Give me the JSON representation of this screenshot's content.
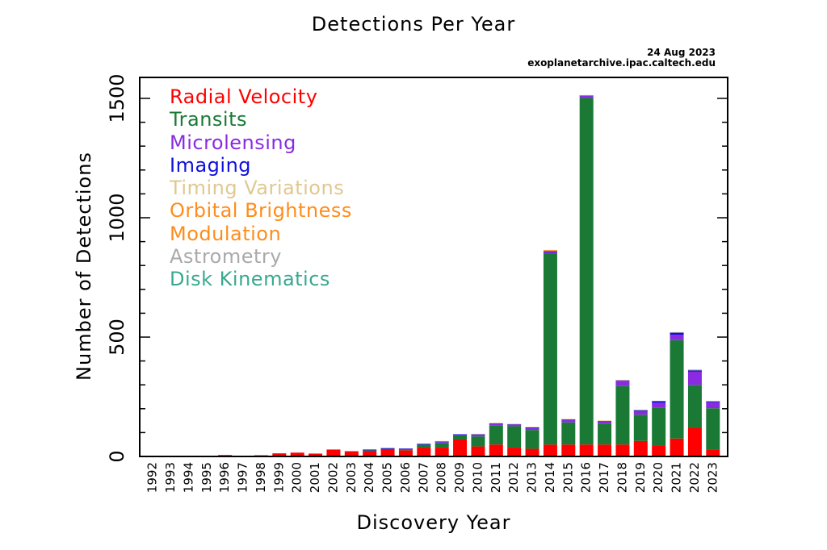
{
  "chart_data": {
    "type": "bar",
    "stacked": true,
    "title": "Detections Per Year",
    "date_stamp": "24 Aug 2023",
    "source": "exoplanetarchive.ipac.caltech.edu",
    "xlabel": "Discovery Year",
    "ylabel": "Number of Detections",
    "ylim": [
      0,
      1500
    ],
    "yticks": [
      0,
      500,
      1000,
      1500
    ],
    "grid": false,
    "legend_position": "top-left",
    "categories": [
      "1992",
      "1993",
      "1994",
      "1995",
      "1996",
      "1997",
      "1998",
      "1999",
      "2000",
      "2001",
      "2002",
      "2003",
      "2004",
      "2005",
      "2006",
      "2007",
      "2008",
      "2009",
      "2010",
      "2011",
      "2012",
      "2013",
      "2014",
      "2015",
      "2016",
      "2017",
      "2018",
      "2019",
      "2020",
      "2021",
      "2022",
      "2023"
    ],
    "series": [
      {
        "name": "Radial Velocity",
        "color": "#ff0000",
        "values": [
          0,
          0,
          0,
          1,
          6,
          1,
          5,
          13,
          16,
          12,
          29,
          22,
          22,
          31,
          26,
          37,
          37,
          71,
          42,
          50,
          37,
          32,
          50,
          50,
          50,
          50,
          50,
          65,
          47,
          75,
          120,
          30
        ]
      },
      {
        "name": "Transits",
        "color": "#1a7a35",
        "values": [
          0,
          0,
          0,
          0,
          0,
          0,
          0,
          0,
          0,
          0,
          0,
          0,
          4,
          2,
          3,
          13,
          19,
          18,
          42,
          79,
          90,
          79,
          798,
          93,
          1452,
          88,
          245,
          110,
          158,
          412,
          180,
          172
        ]
      },
      {
        "name": "Microlensing",
        "color": "#8a2be2",
        "values": [
          0,
          0,
          0,
          0,
          0,
          0,
          0,
          0,
          0,
          0,
          0,
          0,
          2,
          1,
          2,
          2,
          4,
          2,
          6,
          6,
          7,
          7,
          8,
          9,
          8,
          10,
          22,
          15,
          20,
          23,
          55,
          25
        ]
      },
      {
        "name": "Imaging",
        "color": "#1010dd",
        "values": [
          0,
          0,
          0,
          0,
          0,
          0,
          0,
          0,
          0,
          0,
          0,
          0,
          1,
          1,
          2,
          1,
          4,
          2,
          3,
          3,
          2,
          5,
          4,
          4,
          3,
          2,
          3,
          5,
          7,
          10,
          7,
          5
        ]
      },
      {
        "name": "Timing Variations",
        "color": "#e0c890",
        "values": [
          2,
          0,
          1,
          0,
          0,
          0,
          0,
          0,
          0,
          0,
          0,
          0,
          0,
          0,
          0,
          0,
          1,
          0,
          2,
          3,
          1,
          1,
          4,
          1,
          1,
          1,
          1,
          1,
          0,
          1,
          1,
          1
        ]
      },
      {
        "name": "Orbital Brightness Modulation",
        "color": "#ff8c1a",
        "values": [
          0,
          0,
          0,
          0,
          0,
          0,
          0,
          0,
          0,
          0,
          0,
          0,
          0,
          0,
          0,
          0,
          0,
          0,
          0,
          0,
          0,
          0,
          1,
          0,
          0,
          0,
          0,
          0,
          0,
          0,
          0,
          0
        ]
      },
      {
        "name": "Astrometry",
        "color": "#aaaaaa",
        "values": [
          0,
          0,
          0,
          0,
          0,
          0,
          0,
          0,
          0,
          0,
          0,
          0,
          0,
          0,
          0,
          0,
          0,
          0,
          0,
          0,
          0,
          0,
          0,
          0,
          0,
          0,
          0,
          0,
          0,
          0,
          1,
          0
        ]
      },
      {
        "name": "Disk Kinematics",
        "color": "#3aa890",
        "values": [
          0,
          0,
          0,
          0,
          0,
          0,
          0,
          0,
          0,
          0,
          0,
          0,
          0,
          0,
          0,
          0,
          0,
          0,
          0,
          0,
          0,
          0,
          0,
          0,
          0,
          0,
          0,
          0,
          0,
          0,
          0,
          0
        ]
      }
    ],
    "legend": [
      {
        "text": "Radial Velocity",
        "color": "#ff0000"
      },
      {
        "text": "Transits",
        "color": "#1a7a35"
      },
      {
        "text": "Microlensing",
        "color": "#8a2be2"
      },
      {
        "text": "Imaging",
        "color": "#1010dd"
      },
      {
        "text": "Timing Variations",
        "color": "#e0c890"
      },
      {
        "text": "Orbital Brightness",
        "color": "#ff8c1a"
      },
      {
        "text": "Modulation",
        "color": "#ff8c1a"
      },
      {
        "text": "Astrometry",
        "color": "#aaaaaa"
      },
      {
        "text": "Disk Kinematics",
        "color": "#3aa890"
      }
    ]
  }
}
